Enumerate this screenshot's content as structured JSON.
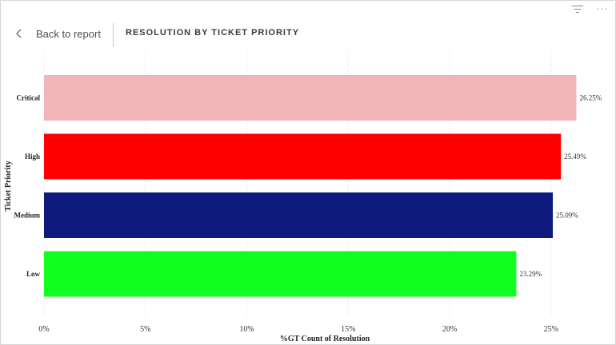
{
  "toolbar": {
    "filter_icon": "filter-lines-icon",
    "more_icon": "more-options-icon",
    "more_glyph": "···"
  },
  "header": {
    "back_label": "Back to report",
    "title": "RESOLUTION BY TICKET PRIORITY"
  },
  "chart_data": {
    "type": "bar",
    "orientation": "horizontal",
    "title": "RESOLUTION BY TICKET PRIORITY",
    "xlabel": "%GT Count of Resolution",
    "ylabel": "Ticket Priority",
    "categories": [
      "Critical",
      "High",
      "Medium",
      "Low"
    ],
    "values": [
      26.25,
      25.49,
      25.09,
      23.29
    ],
    "data_labels": [
      "26.25%",
      "25.49%",
      "25.09%",
      "23.29%"
    ],
    "colors": [
      "#efb5b9",
      "#ff0000",
      "#0f1b7c",
      "#12ff22"
    ],
    "xlim": [
      0,
      27.5
    ],
    "xticks": [
      0,
      5,
      10,
      15,
      20,
      25
    ],
    "xtick_labels": [
      "0%",
      "5%",
      "10%",
      "15%",
      "20%",
      "25%"
    ],
    "grid": true,
    "legend": "none"
  }
}
